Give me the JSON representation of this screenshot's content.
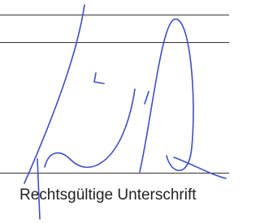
{
  "caption": "Rechtsgültige Unterschrift"
}
